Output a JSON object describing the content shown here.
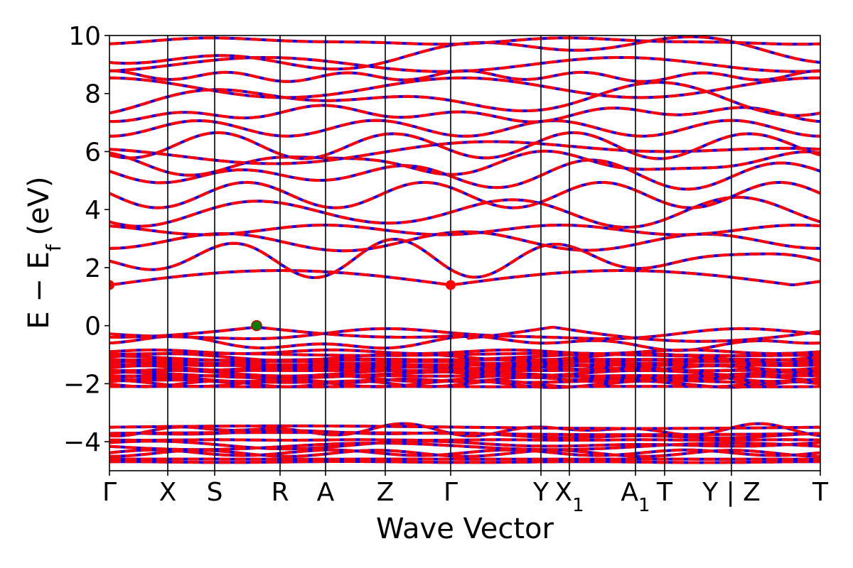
{
  "chart_data": {
    "type": "line",
    "title": "",
    "xlabel": "Wave Vector",
    "ylabel": "E − E",
    "ylabel_subscript": "f",
    "ylabel_unit": " (eV)",
    "ylim": [
      -5,
      10
    ],
    "yticks": [
      {
        "value": -4,
        "label": "−4"
      },
      {
        "value": -2,
        "label": "−2"
      },
      {
        "value": 0,
        "label": "0"
      },
      {
        "value": 2,
        "label": "2"
      },
      {
        "value": 4,
        "label": "4"
      },
      {
        "value": 6,
        "label": "6"
      },
      {
        "value": 8,
        "label": "8"
      },
      {
        "value": 10,
        "label": "10"
      }
    ],
    "kpath_ticks": [
      {
        "position": 0.0,
        "label": "Γ",
        "sub": ""
      },
      {
        "position": 0.082,
        "label": "X",
        "sub": ""
      },
      {
        "position": 0.148,
        "label": "S",
        "sub": ""
      },
      {
        "position": 0.24,
        "label": "R",
        "sub": ""
      },
      {
        "position": 0.304,
        "label": "A",
        "sub": ""
      },
      {
        "position": 0.388,
        "label": "Z",
        "sub": ""
      },
      {
        "position": 0.48,
        "label": "Γ",
        "sub": ""
      },
      {
        "position": 0.607,
        "label": "Y",
        "sub": ""
      },
      {
        "position": 0.647,
        "label": "X",
        "sub": "1"
      },
      {
        "position": 0.74,
        "label": "A",
        "sub": "1"
      },
      {
        "position": 0.781,
        "label": "T",
        "sub": ""
      },
      {
        "position": 0.875,
        "label": "Y | Z",
        "sub": ""
      },
      {
        "position": 1.0,
        "label": "T",
        "sub": ""
      }
    ],
    "series": [
      {
        "color": "#0000ff",
        "style": "solid"
      },
      {
        "color": "#ff0000",
        "style": "dashed"
      }
    ],
    "band_energies_at_gamma": [
      -4.7,
      -4.4,
      -4.1,
      -3.75,
      -3.6,
      -2.0,
      -1.85,
      -1.7,
      -1.5,
      -1.3,
      -1.1,
      -0.6,
      -0.3,
      -0.05,
      1.4,
      2.3,
      2.9,
      3.3,
      3.9,
      4.5,
      5.2,
      5.6,
      6.0,
      6.2,
      6.8,
      7.3,
      7.8,
      8.2,
      8.6,
      9.0,
      9.4,
      9.8
    ],
    "markers": [
      {
        "name": "cbm",
        "x": 0.0,
        "y": 1.4,
        "color": "#ff0000"
      },
      {
        "name": "cbm",
        "x": 0.48,
        "y": 1.4,
        "color": "#ff0000"
      },
      {
        "name": "vbm",
        "x": 0.207,
        "y": 0.0,
        "color": "#008000"
      }
    ]
  }
}
